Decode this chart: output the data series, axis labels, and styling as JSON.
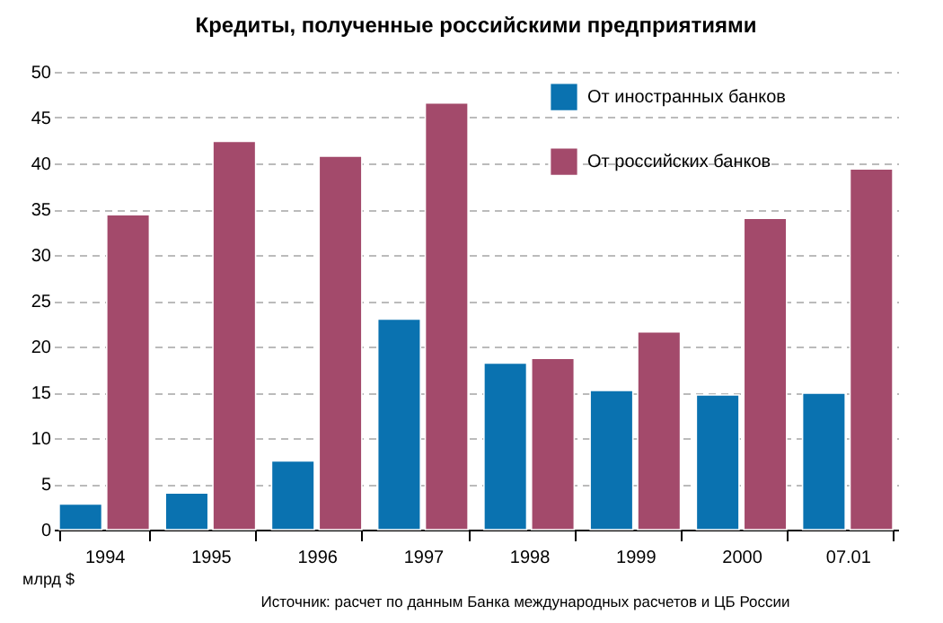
{
  "chart_data": {
    "type": "bar",
    "title": "Кредиты, полученные российскими предприятиями",
    "categories": [
      "1994",
      "1995",
      "1996",
      "1997",
      "1998",
      "1999",
      "2000",
      "07.01"
    ],
    "series": [
      {
        "name": "От иностранных банков",
        "color": "#0a72b0",
        "values": [
          2.8,
          4.0,
          7.5,
          23.0,
          18.2,
          15.2,
          14.7,
          14.9
        ]
      },
      {
        "name": "От российских банков",
        "color": "#a34a6b",
        "values": [
          34.4,
          42.4,
          40.8,
          46.6,
          18.7,
          21.6,
          34.0,
          39.4
        ]
      }
    ],
    "ylabel": "млрд $",
    "ylim": [
      0,
      50
    ],
    "yticks": [
      0,
      5,
      10,
      15,
      20,
      25,
      30,
      35,
      40,
      45,
      50
    ],
    "grid": "y",
    "legend": "top right",
    "annotations": [
      "Источник: расчет по данным Банка международных расчетов и ЦБ России"
    ]
  }
}
